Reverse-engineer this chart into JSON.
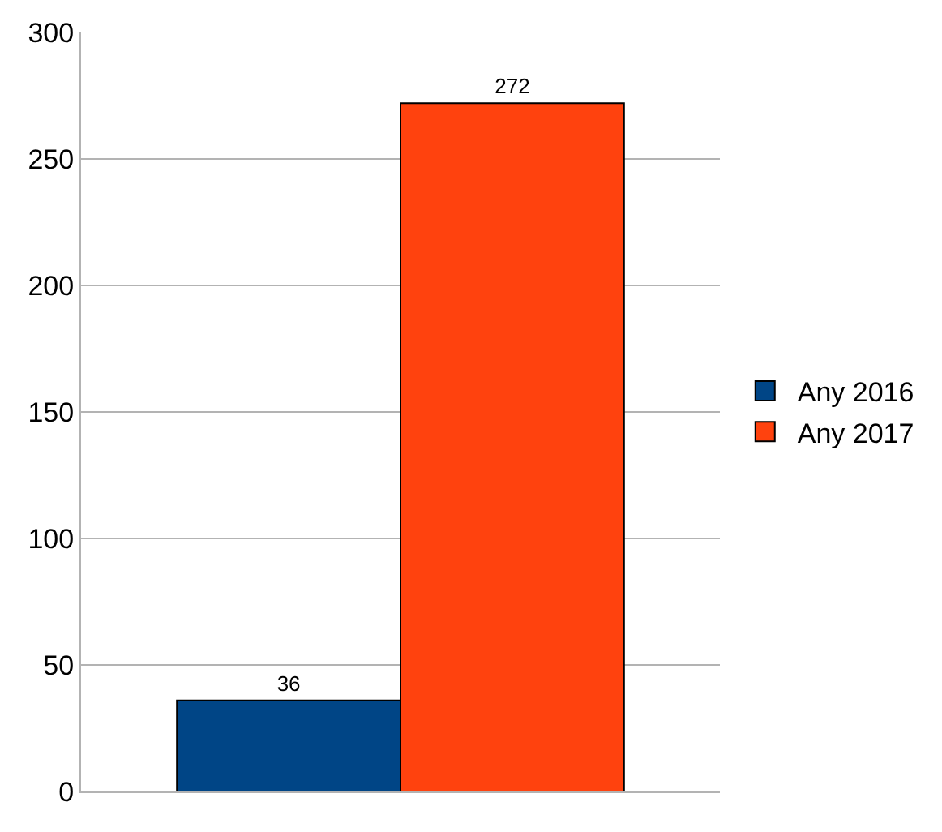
{
  "chart_data": {
    "type": "bar",
    "categories": [
      null
    ],
    "series": [
      {
        "name": "Any 2016",
        "color": "#004586",
        "values": [
          36
        ]
      },
      {
        "name": "Any 2017",
        "color": "#ff420e",
        "values": [
          272
        ]
      }
    ],
    "ylim": [
      0,
      300
    ],
    "yticks": [
      0,
      50,
      100,
      150,
      200,
      250,
      300
    ],
    "grid": "y",
    "legend": "right",
    "data_labels": true
  }
}
